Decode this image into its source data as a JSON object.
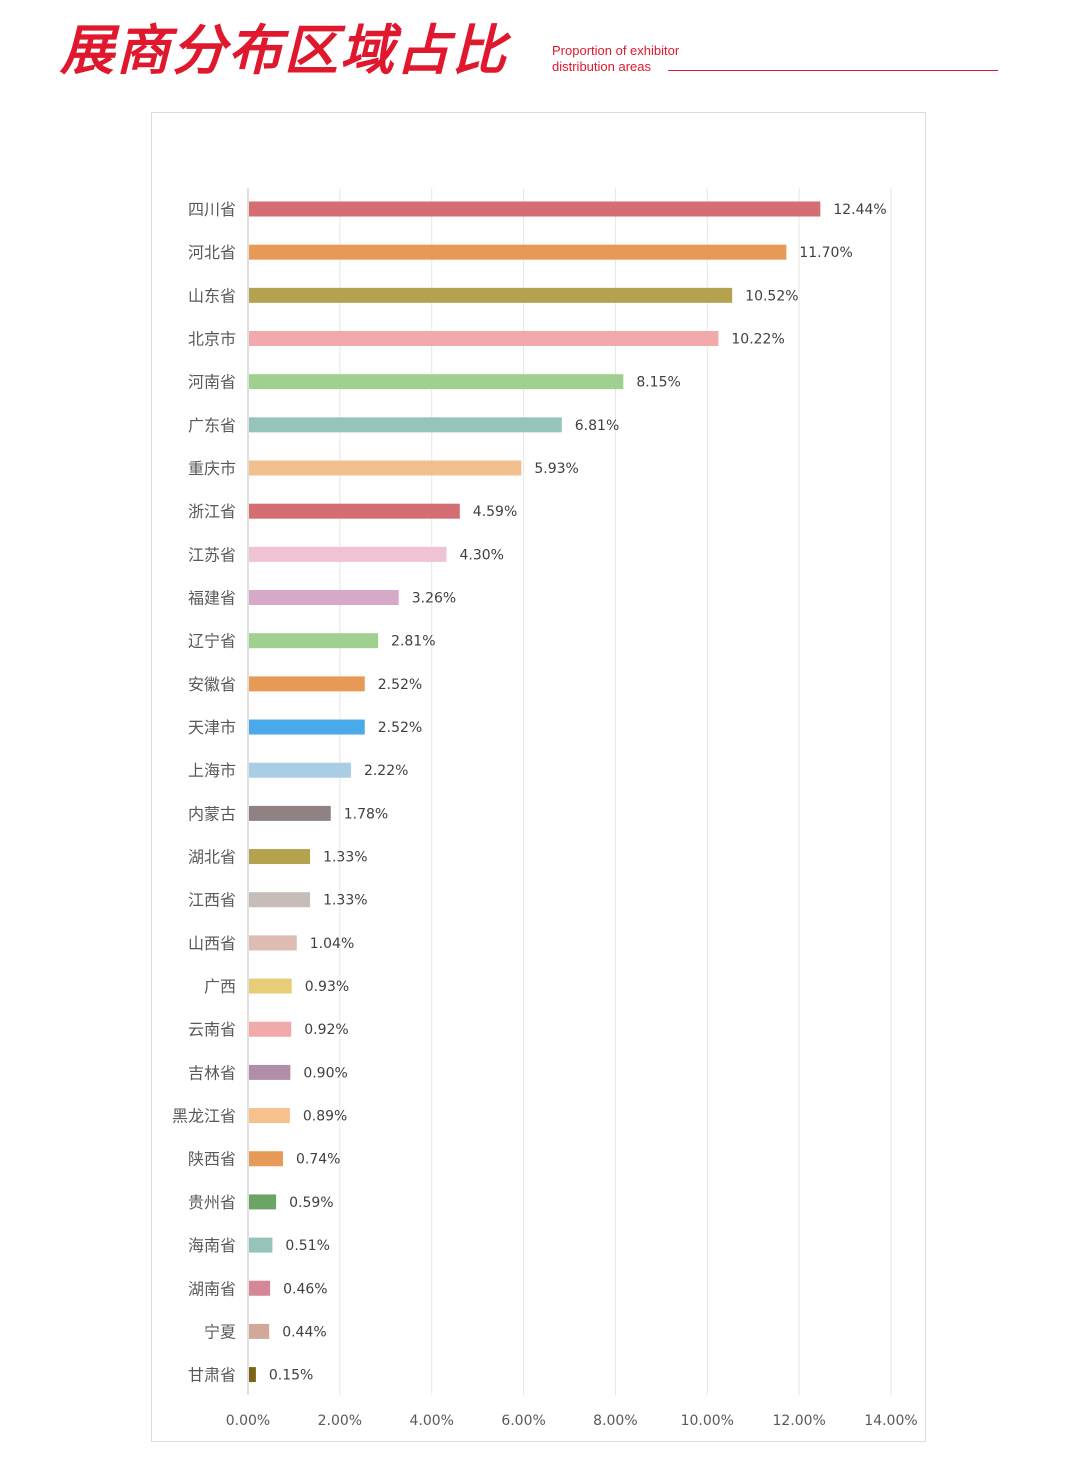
{
  "header": {
    "title": "展商分布区域占比",
    "subtitle_line1": "Proportion of exhibitor",
    "subtitle_line2": "distribution areas"
  },
  "colors": {
    "accent": "#e0182d",
    "gridline": "#e6e6e6",
    "axis": "#bfbfbf"
  },
  "chart_data": {
    "type": "bar",
    "orientation": "horizontal",
    "title": "",
    "xlabel": "",
    "ylabel": "",
    "xlim": [
      0,
      14
    ],
    "x_ticks": [
      0,
      2,
      4,
      6,
      8,
      10,
      12,
      14
    ],
    "tick_labels": [
      "0.00%",
      "2.00%",
      "4.00%",
      "6.00%",
      "8.00%",
      "10.00%",
      "12.00%",
      "14.00%"
    ],
    "grid": "vertical",
    "legend": "none",
    "categories": [
      "四川省",
      "河北省",
      "山东省",
      "北京市",
      "河南省",
      "广东省",
      "重庆市",
      "浙江省",
      "江苏省",
      "福建省",
      "辽宁省",
      "安徽省",
      "天津市",
      "上海市",
      "内蒙古",
      "湖北省",
      "江西省",
      "山西省",
      "广西",
      "云南省",
      "吉林省",
      "黑龙江省",
      "陕西省",
      "贵州省",
      "海南省",
      "湖南省",
      "宁夏",
      "甘肃省"
    ],
    "values": [
      12.44,
      11.7,
      10.52,
      10.22,
      8.15,
      6.81,
      5.93,
      4.59,
      4.3,
      3.26,
      2.81,
      2.52,
      2.52,
      2.22,
      1.78,
      1.33,
      1.33,
      1.04,
      0.93,
      0.92,
      0.9,
      0.89,
      0.74,
      0.59,
      0.51,
      0.46,
      0.44,
      0.15
    ],
    "value_labels": [
      "12.44%",
      "11.70%",
      "10.52%",
      "10.22%",
      "8.15%",
      "6.81%",
      "5.93%",
      "4.59%",
      "4.30%",
      "3.26%",
      "2.81%",
      "2.52%",
      "2.52%",
      "2.22%",
      "1.78%",
      "1.33%",
      "1.33%",
      "1.04%",
      "0.93%",
      "0.92%",
      "0.90%",
      "0.89%",
      "0.74%",
      "0.59%",
      "0.51%",
      "0.46%",
      "0.44%",
      "0.15%"
    ],
    "bar_colors": [
      "#d46e72",
      "#e69a56",
      "#b5a24e",
      "#f2a9a9",
      "#9fd08f",
      "#96c4bb",
      "#f2c08e",
      "#d46e72",
      "#efc3d4",
      "#d5a9c7",
      "#9fd08f",
      "#e69a56",
      "#4aa9e9",
      "#a9cde5",
      "#8e8282",
      "#b5a24e",
      "#c6bcb9",
      "#ddbcb1",
      "#e8cd79",
      "#f2a9a9",
      "#b08eaa",
      "#f6c18d",
      "#e69a56",
      "#6ca465",
      "#96c4bb",
      "#d58798",
      "#d1a89a",
      "#7a6416"
    ]
  }
}
